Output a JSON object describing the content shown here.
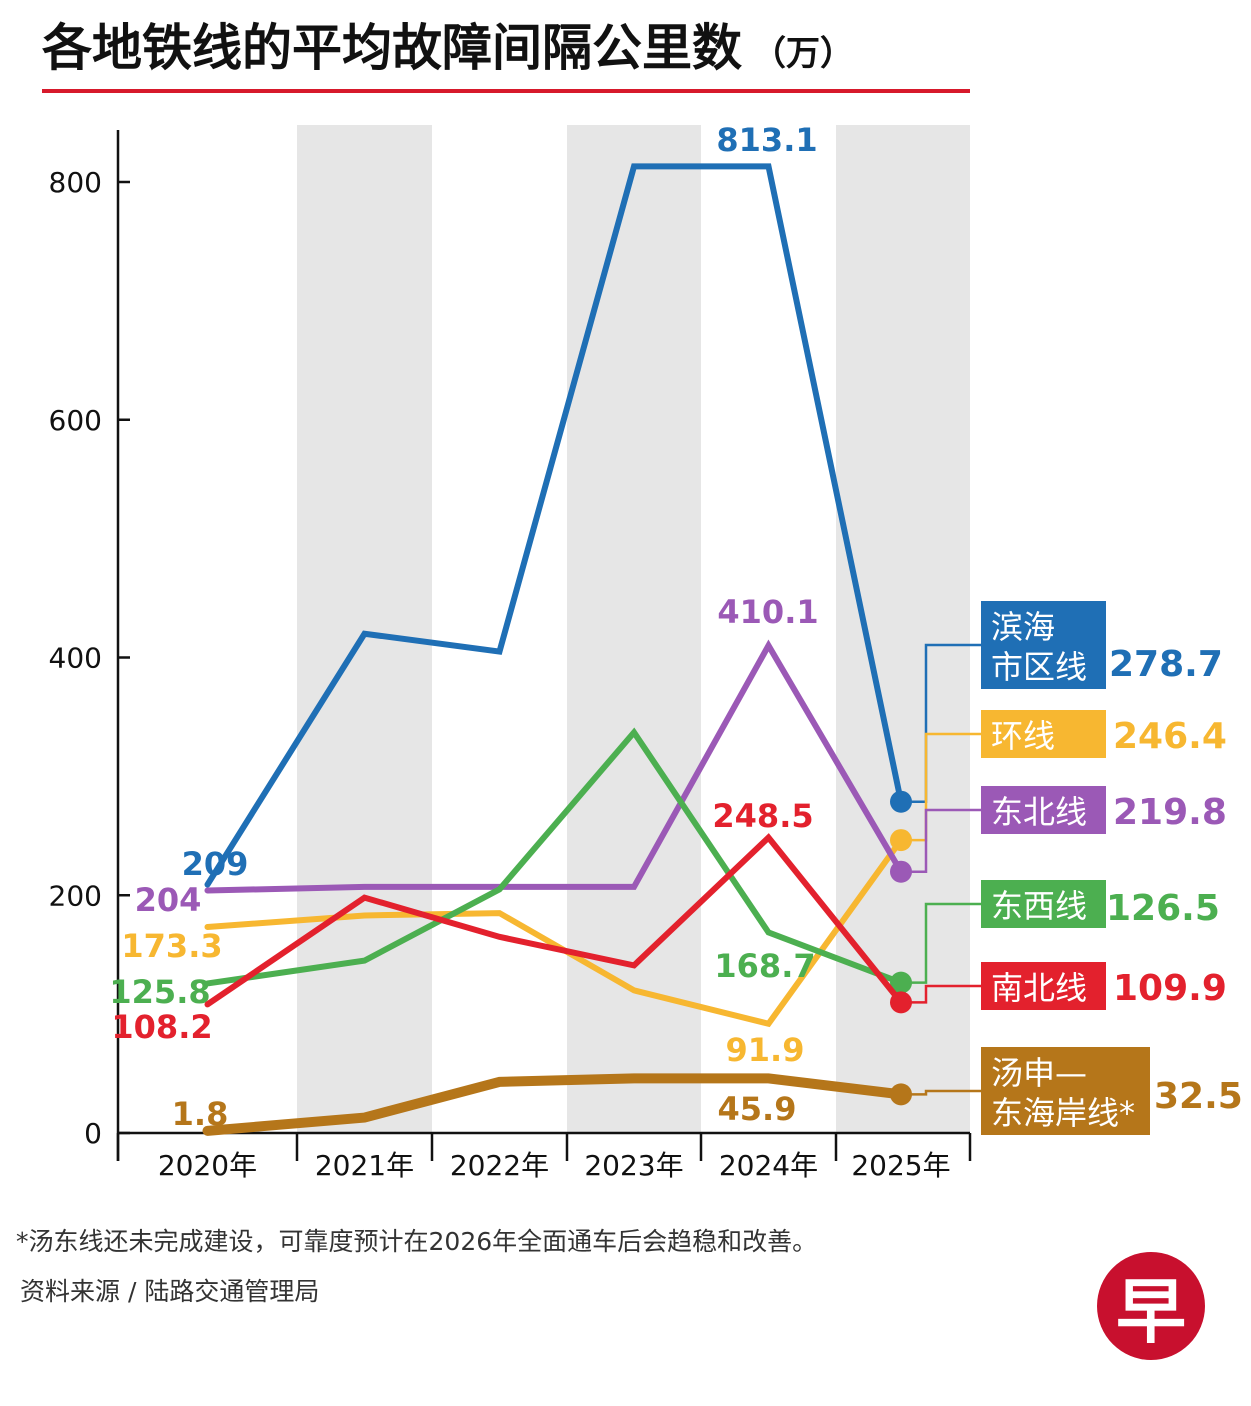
{
  "title": "各地铁线的平均故障间隔公里数",
  "unit": "（万）",
  "footnote": "*汤东线还未完成建设，可靠度预计在2026年全面通车后会趋稳和改善。",
  "source": "资料来源 / 陆路交通管理局",
  "logo_text": "早",
  "chart_data": {
    "type": "line",
    "title": "各地铁线的平均故障间隔公里数（万）",
    "categories": [
      "2020年",
      "2021年",
      "2022年",
      "2023年",
      "2024年",
      "2025年"
    ],
    "ylim": [
      0,
      840
    ],
    "yticks": [
      0,
      200,
      400,
      600,
      800
    ],
    "grid": false,
    "series": [
      {
        "name": "滨海\n市区线",
        "color": "#1f6fb5",
        "values": [
          209,
          420,
          405,
          813.1,
          813.1,
          278.7
        ],
        "labels": [
          {
            "i": 0,
            "text": "209"
          },
          {
            "i": 4,
            "text": "813.1"
          }
        ],
        "end_label": "278.7"
      },
      {
        "name": "环线",
        "color": "#f7b731",
        "values": [
          173.3,
          183,
          185,
          120,
          91.9,
          246.4
        ],
        "labels": [
          {
            "i": 0,
            "text": "173.3"
          },
          {
            "i": 4,
            "text": "91.9"
          }
        ],
        "end_label": "246.4"
      },
      {
        "name": "东北线",
        "color": "#9b59b6",
        "values": [
          204,
          207,
          207,
          207,
          410.1,
          219.8
        ],
        "labels": [
          {
            "i": 0,
            "text": "204"
          },
          {
            "i": 4,
            "text": "410.1"
          }
        ],
        "end_label": "219.8"
      },
      {
        "name": "东西线",
        "color": "#4caf50",
        "values": [
          125.8,
          145,
          205,
          337,
          168.7,
          126.5
        ],
        "labels": [
          {
            "i": 0,
            "text": "125.8"
          },
          {
            "i": 4,
            "text": "168.7"
          }
        ],
        "end_label": "126.5"
      },
      {
        "name": "南北线",
        "color": "#e3212d",
        "values": [
          108.2,
          198,
          165,
          141,
          248.5,
          109.9
        ],
        "labels": [
          {
            "i": 0,
            "text": "108.2"
          },
          {
            "i": 4,
            "text": "248.5"
          }
        ],
        "end_label": "109.9"
      },
      {
        "name": "汤申—\n东海岸线*",
        "color": "#b5761a",
        "values": [
          1.8,
          13,
          43,
          46,
          45.9,
          32.5
        ],
        "labels": [
          {
            "i": 0,
            "text": "1.8"
          },
          {
            "i": 4,
            "text": "45.9"
          }
        ],
        "end_label": "32.5"
      }
    ]
  }
}
